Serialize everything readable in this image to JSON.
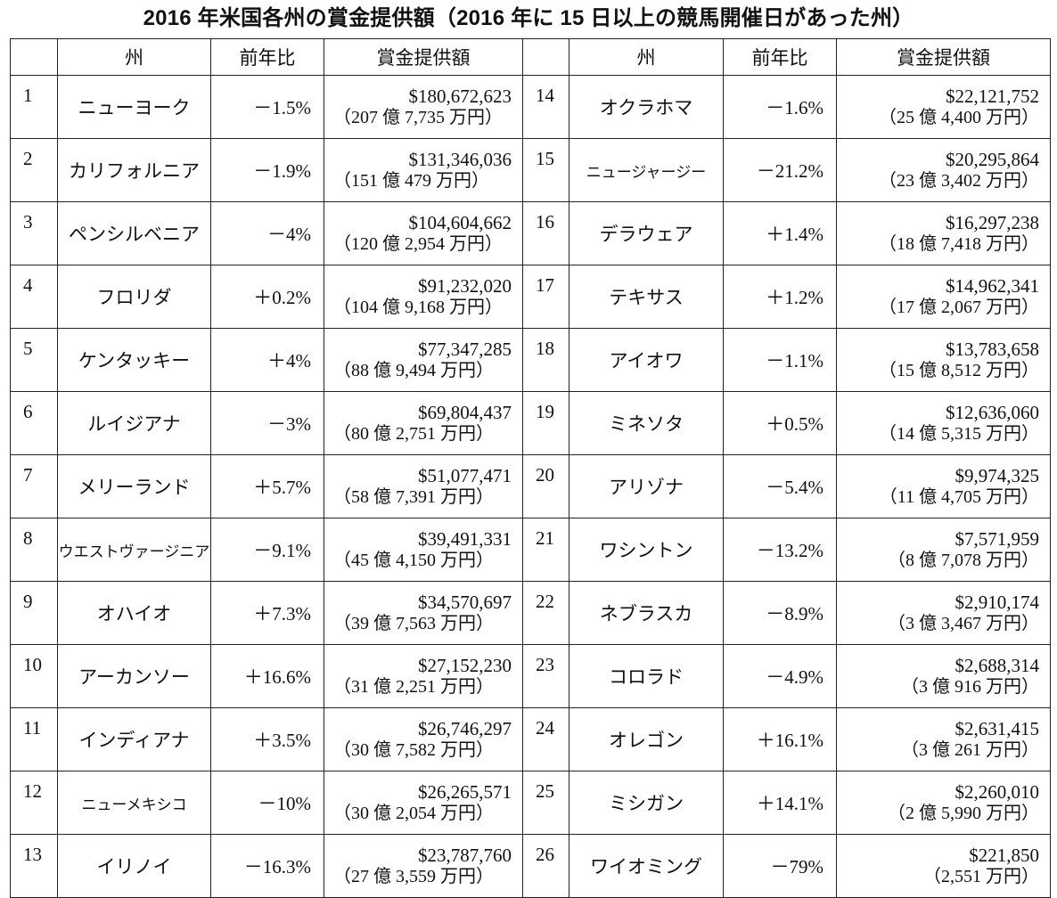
{
  "title": "2016 年米国各州の賞金提供額（2016 年に 15 日以上の競馬開催日があった州）",
  "headers": {
    "state": "州",
    "change": "前年比",
    "purse": "賞金提供額"
  },
  "rows": [
    {
      "rank": "1",
      "state": "ニューヨーク",
      "change": "－1.5%",
      "usd": "$180,672,623",
      "jpy": "（207 億 7,735 万円）"
    },
    {
      "rank": "2",
      "state": "カリフォルニア",
      "change": "－1.9%",
      "usd": "$131,346,036",
      "jpy": "（151 億 479 万円）"
    },
    {
      "rank": "3",
      "state": "ペンシルベニア",
      "change": "－4%",
      "usd": "$104,604,662",
      "jpy": "（120 億 2,954 万円）"
    },
    {
      "rank": "4",
      "state": "フロリダ",
      "change": "＋0.2%",
      "usd": "$91,232,020",
      "jpy": "（104 億 9,168 万円）"
    },
    {
      "rank": "5",
      "state": "ケンタッキー",
      "change": "＋4%",
      "usd": "$77,347,285",
      "jpy": "（88 億 9,494 万円）"
    },
    {
      "rank": "6",
      "state": "ルイジアナ",
      "change": "－3%",
      "usd": "$69,804,437",
      "jpy": "（80 億 2,751 万円）"
    },
    {
      "rank": "7",
      "state": "メリーランド",
      "change": "＋5.7%",
      "usd": "$51,077,471",
      "jpy": "（58 億 7,391 万円）"
    },
    {
      "rank": "8",
      "state": "ウエストヴァージニア",
      "change": "－9.1%",
      "usd": "$39,491,331",
      "jpy": "（45 億 4,150 万円）"
    },
    {
      "rank": "9",
      "state": "オハイオ",
      "change": "＋7.3%",
      "usd": "$34,570,697",
      "jpy": "（39 億 7,563 万円）"
    },
    {
      "rank": "10",
      "state": "アーカンソー",
      "change": "＋16.6%",
      "usd": "$27,152,230",
      "jpy": "（31 億 2,251 万円）"
    },
    {
      "rank": "11",
      "state": "インディアナ",
      "change": "＋3.5%",
      "usd": "$26,746,297",
      "jpy": "（30 億 7,582 万円）"
    },
    {
      "rank": "12",
      "state": "ニューメキシコ",
      "change": "－10%",
      "usd": "$26,265,571",
      "jpy": "（30 億 2,054 万円）"
    },
    {
      "rank": "13",
      "state": "イリノイ",
      "change": "－16.3%",
      "usd": "$23,787,760",
      "jpy": "（27 億 3,559 万円）"
    },
    {
      "rank": "14",
      "state": "オクラホマ",
      "change": "－1.6%",
      "usd": "$22,121,752",
      "jpy": "（25 億 4,400 万円）"
    },
    {
      "rank": "15",
      "state": "ニュージャージー",
      "change": "－21.2%",
      "usd": "$20,295,864",
      "jpy": "（23 億 3,402 万円）"
    },
    {
      "rank": "16",
      "state": "デラウェア",
      "change": "＋1.4%",
      "usd": "$16,297,238",
      "jpy": "（18 億 7,418 万円）"
    },
    {
      "rank": "17",
      "state": "テキサス",
      "change": "＋1.2%",
      "usd": "$14,962,341",
      "jpy": "（17 億 2,067 万円）"
    },
    {
      "rank": "18",
      "state": "アイオワ",
      "change": "－1.1%",
      "usd": "$13,783,658",
      "jpy": "（15 億 8,512 万円）"
    },
    {
      "rank": "19",
      "state": "ミネソタ",
      "change": "＋0.5%",
      "usd": "$12,636,060",
      "jpy": "（14 億 5,315 万円）"
    },
    {
      "rank": "20",
      "state": "アリゾナ",
      "change": "－5.4%",
      "usd": "$9,974,325",
      "jpy": "（11 億 4,705 万円）"
    },
    {
      "rank": "21",
      "state": "ワシントン",
      "change": "－13.2%",
      "usd": "$7,571,959",
      "jpy": "（8 億 7,078 万円）"
    },
    {
      "rank": "22",
      "state": "ネブラスカ",
      "change": "－8.9%",
      "usd": "$2,910,174",
      "jpy": "（3 億 3,467 万円）"
    },
    {
      "rank": "23",
      "state": "コロラド",
      "change": "－4.9%",
      "usd": "$2,688,314",
      "jpy": "（3 億 916 万円）"
    },
    {
      "rank": "24",
      "state": "オレゴン",
      "change": "＋16.1%",
      "usd": "$2,631,415",
      "jpy": "（3 億 261 万円）"
    },
    {
      "rank": "25",
      "state": "ミシガン",
      "change": "＋14.1%",
      "usd": "$2,260,010",
      "jpy": "（2 億 5,990 万円）"
    },
    {
      "rank": "26",
      "state": "ワイオミング",
      "change": "－79%",
      "usd": "$221,850",
      "jpy": "（2,551 万円）"
    }
  ]
}
